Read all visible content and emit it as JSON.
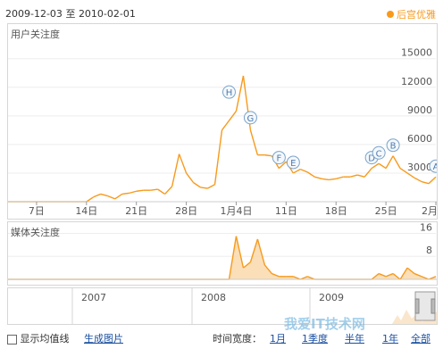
{
  "header": {
    "date_from": "2009-12-03",
    "date_sep": "至",
    "date_to": "2010-02-01",
    "legend_label": "后宫优雅",
    "accent": "#f79a1c"
  },
  "user_panel": {
    "title": "用户关注度"
  },
  "media_panel": {
    "title": "媒体关注度"
  },
  "nav_years": [
    "2007",
    "2008",
    "2009"
  ],
  "bottom": {
    "avg_label": "显示均值线",
    "gen_label": "生成图片",
    "width_label": "时间宽度：",
    "ranges": [
      "1月",
      "1季度",
      "半年",
      "1年",
      "全部"
    ]
  },
  "watermark": "我爱IT技术网",
  "chart_data": [
    {
      "type": "area",
      "title": "用户关注度",
      "x": [
        "12-03",
        "12-04",
        "12-05",
        "12-06",
        "12-07",
        "12-08",
        "12-09",
        "12-10",
        "12-11",
        "12-12",
        "12-13",
        "12-14",
        "12-15",
        "12-16",
        "12-17",
        "12-18",
        "12-19",
        "12-20",
        "12-21",
        "12-22",
        "12-23",
        "12-24",
        "12-25",
        "12-26",
        "12-27",
        "12-28",
        "12-29",
        "12-30",
        "12-31",
        "01-01",
        "01-02",
        "01-03",
        "01-04",
        "01-05",
        "01-06",
        "01-07",
        "01-08",
        "01-09",
        "01-10",
        "01-11",
        "01-12",
        "01-13",
        "01-14",
        "01-15",
        "01-16",
        "01-17",
        "01-18",
        "01-19",
        "01-20",
        "01-21",
        "01-22",
        "01-23",
        "01-24",
        "01-25",
        "01-26",
        "01-27",
        "01-28",
        "01-29",
        "01-30",
        "01-31",
        "02-01"
      ],
      "values": [
        0,
        0,
        0,
        0,
        0,
        0,
        0,
        0,
        0,
        0,
        0,
        0,
        500,
        800,
        600,
        300,
        800,
        900,
        1100,
        1200,
        1200,
        1300,
        800,
        1600,
        5000,
        3000,
        2000,
        1500,
        1400,
        1800,
        7500,
        8500,
        9500,
        13200,
        7500,
        4900,
        4900,
        4800,
        3500,
        4200,
        3000,
        3400,
        3100,
        2600,
        2400,
        2300,
        2400,
        2600,
        2600,
        2800,
        2600,
        3500,
        4000,
        3500,
        4800,
        3500,
        3000,
        2500,
        2100,
        1900,
        2600
      ],
      "x_ticks": [
        "7日",
        "14日",
        "21日",
        "28日",
        "1月4日",
        "11日",
        "18日",
        "25日",
        "2月"
      ],
      "y_ticks": [
        3000,
        6000,
        9000,
        12000,
        15000
      ],
      "ylim": [
        0,
        16000
      ],
      "annotations": [
        {
          "label": "H",
          "x": "01-03"
        },
        {
          "label": "G",
          "x": "01-06"
        },
        {
          "label": "F",
          "x": "01-10"
        },
        {
          "label": "E",
          "x": "01-12"
        },
        {
          "label": "D",
          "x": "01-23"
        },
        {
          "label": "C",
          "x": "01-24"
        },
        {
          "label": "B",
          "x": "01-26"
        },
        {
          "label": "A",
          "x": "02-01"
        }
      ],
      "grid": true
    },
    {
      "type": "area",
      "title": "媒体关注度",
      "x": [
        "12-03",
        "12-04",
        "12-05",
        "12-06",
        "12-07",
        "12-08",
        "12-09",
        "12-10",
        "12-11",
        "12-12",
        "12-13",
        "12-14",
        "12-15",
        "12-16",
        "12-17",
        "12-18",
        "12-19",
        "12-20",
        "12-21",
        "12-22",
        "12-23",
        "12-24",
        "12-25",
        "12-26",
        "12-27",
        "12-28",
        "12-29",
        "12-30",
        "12-31",
        "01-01",
        "01-02",
        "01-03",
        "01-04",
        "01-05",
        "01-06",
        "01-07",
        "01-08",
        "01-09",
        "01-10",
        "01-11",
        "01-12",
        "01-13",
        "01-14",
        "01-15",
        "01-16",
        "01-17",
        "01-18",
        "01-19",
        "01-20",
        "01-21",
        "01-22",
        "01-23",
        "01-24",
        "01-25",
        "01-26",
        "01-27",
        "01-28",
        "01-29",
        "01-30",
        "01-31",
        "02-01"
      ],
      "values": [
        0,
        0,
        0,
        0,
        0,
        0,
        0,
        0,
        0,
        0,
        0,
        0,
        0,
        0,
        0,
        0,
        0,
        0,
        0,
        0,
        0,
        0,
        0,
        0,
        0,
        0,
        0,
        0,
        0,
        0,
        0,
        0,
        15,
        4,
        6,
        14,
        5,
        2,
        1,
        1,
        1,
        0,
        1,
        0,
        0,
        0,
        0,
        0,
        0,
        0,
        0,
        0,
        2,
        1,
        2,
        0,
        4,
        2,
        1,
        0,
        1
      ],
      "y_ticks": [
        8,
        16
      ],
      "ylim": [
        0,
        18
      ]
    }
  ]
}
